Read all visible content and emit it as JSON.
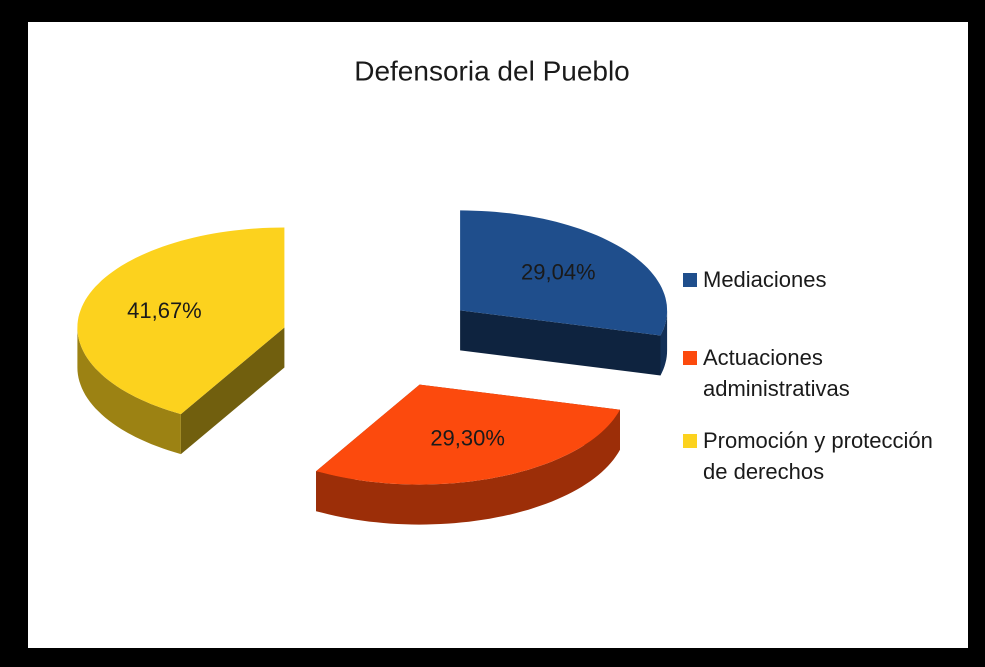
{
  "chart_data": {
    "type": "pie",
    "title": "Defensoria del Pueblo",
    "categories": [
      "Mediaciones",
      "Actuaciones administrativas",
      "Promoción y protección de derechos"
    ],
    "values": [
      29.04,
      29.3,
      41.67
    ],
    "value_labels": [
      "29,04%",
      "29,30%",
      "41,67%"
    ],
    "colors": [
      "#1f4e8c",
      "#fc4a0d",
      "#fcd21e"
    ],
    "legend": "right",
    "exploded": true,
    "three_d": true
  }
}
